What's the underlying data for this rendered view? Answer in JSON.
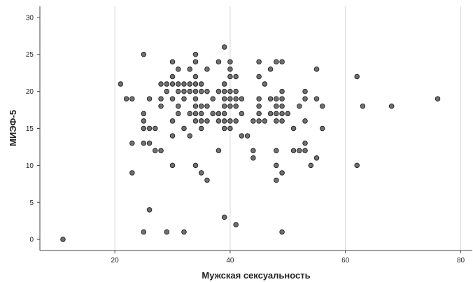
{
  "chart_data": {
    "type": "scatter",
    "title": "",
    "xlabel": "Мужская сексуальность",
    "ylabel": "МИЭФ-5",
    "xlim": [
      7,
      82
    ],
    "ylim": [
      -1.5,
      31.5
    ],
    "xticks": [
      20,
      40,
      60,
      80
    ],
    "yticks": [
      0,
      5,
      10,
      15,
      20,
      25,
      30
    ],
    "grid": "vertical",
    "marker_color": "#707070",
    "points": [
      [
        11,
        0
      ],
      [
        21,
        21
      ],
      [
        22,
        19
      ],
      [
        23,
        19
      ],
      [
        23,
        13
      ],
      [
        23,
        9
      ],
      [
        25,
        25
      ],
      [
        25,
        17
      ],
      [
        25,
        16
      ],
      [
        25,
        15
      ],
      [
        25,
        13
      ],
      [
        25,
        1
      ],
      [
        26,
        19
      ],
      [
        26,
        15
      ],
      [
        26,
        13
      ],
      [
        26,
        4
      ],
      [
        27,
        15
      ],
      [
        27,
        12
      ],
      [
        28,
        21
      ],
      [
        28,
        19
      ],
      [
        28,
        18
      ],
      [
        28,
        12
      ],
      [
        29,
        21
      ],
      [
        29,
        20
      ],
      [
        29,
        1
      ],
      [
        30,
        24
      ],
      [
        30,
        22
      ],
      [
        30,
        21
      ],
      [
        30,
        19
      ],
      [
        30,
        16
      ],
      [
        30,
        14
      ],
      [
        30,
        10
      ],
      [
        31,
        23
      ],
      [
        31,
        21
      ],
      [
        31,
        20
      ],
      [
        31,
        18
      ],
      [
        31,
        17
      ],
      [
        32,
        21
      ],
      [
        32,
        20
      ],
      [
        32,
        19
      ],
      [
        32,
        15
      ],
      [
        32,
        1
      ],
      [
        33,
        23
      ],
      [
        33,
        21
      ],
      [
        33,
        20
      ],
      [
        33,
        17
      ],
      [
        33,
        14
      ],
      [
        34,
        25
      ],
      [
        34,
        24
      ],
      [
        34,
        22
      ],
      [
        34,
        21
      ],
      [
        34,
        20
      ],
      [
        34,
        19
      ],
      [
        34,
        18
      ],
      [
        34,
        17
      ],
      [
        34,
        16
      ],
      [
        34,
        10
      ],
      [
        35,
        21
      ],
      [
        35,
        20
      ],
      [
        35,
        18
      ],
      [
        35,
        17
      ],
      [
        35,
        16
      ],
      [
        35,
        15
      ],
      [
        35,
        9
      ],
      [
        36,
        23
      ],
      [
        36,
        20
      ],
      [
        36,
        18
      ],
      [
        36,
        16
      ],
      [
        36,
        8
      ],
      [
        37,
        19
      ],
      [
        37,
        17
      ],
      [
        38,
        24
      ],
      [
        38,
        20
      ],
      [
        38,
        17
      ],
      [
        38,
        16
      ],
      [
        38,
        12
      ],
      [
        39,
        26
      ],
      [
        39,
        21
      ],
      [
        39,
        20
      ],
      [
        39,
        19
      ],
      [
        39,
        18
      ],
      [
        39,
        17
      ],
      [
        39,
        16
      ],
      [
        39,
        15
      ],
      [
        39,
        3
      ],
      [
        40,
        24
      ],
      [
        40,
        23
      ],
      [
        40,
        22
      ],
      [
        40,
        20
      ],
      [
        40,
        19
      ],
      [
        40,
        18
      ],
      [
        40,
        16
      ],
      [
        40,
        15
      ],
      [
        41,
        22
      ],
      [
        41,
        20
      ],
      [
        41,
        19
      ],
      [
        41,
        18
      ],
      [
        41,
        16
      ],
      [
        41,
        2
      ],
      [
        42,
        19
      ],
      [
        42,
        17
      ],
      [
        42,
        14
      ],
      [
        43,
        14
      ],
      [
        44,
        16
      ],
      [
        44,
        12
      ],
      [
        44,
        11
      ],
      [
        45,
        24
      ],
      [
        45,
        22
      ],
      [
        45,
        19
      ],
      [
        45,
        18
      ],
      [
        45,
        17
      ],
      [
        45,
        16
      ],
      [
        46,
        21
      ],
      [
        46,
        16
      ],
      [
        47,
        23
      ],
      [
        47,
        19
      ],
      [
        47,
        17
      ],
      [
        48,
        24
      ],
      [
        48,
        19
      ],
      [
        48,
        18
      ],
      [
        48,
        17
      ],
      [
        48,
        16
      ],
      [
        48,
        12
      ],
      [
        48,
        10
      ],
      [
        48,
        8
      ],
      [
        49,
        24
      ],
      [
        49,
        20
      ],
      [
        49,
        19
      ],
      [
        49,
        18
      ],
      [
        49,
        17
      ],
      [
        49,
        16
      ],
      [
        49,
        9
      ],
      [
        49,
        1
      ],
      [
        50,
        17
      ],
      [
        51,
        15
      ],
      [
        51,
        12
      ],
      [
        52,
        18
      ],
      [
        52,
        12
      ],
      [
        53,
        20
      ],
      [
        53,
        19
      ],
      [
        53,
        16
      ],
      [
        53,
        13
      ],
      [
        53,
        12
      ],
      [
        54,
        10
      ],
      [
        55,
        23
      ],
      [
        55,
        19
      ],
      [
        55,
        11
      ],
      [
        56,
        18
      ],
      [
        56,
        15
      ],
      [
        62,
        22
      ],
      [
        62,
        10
      ],
      [
        63,
        18
      ],
      [
        68,
        18
      ],
      [
        76,
        19
      ]
    ]
  }
}
